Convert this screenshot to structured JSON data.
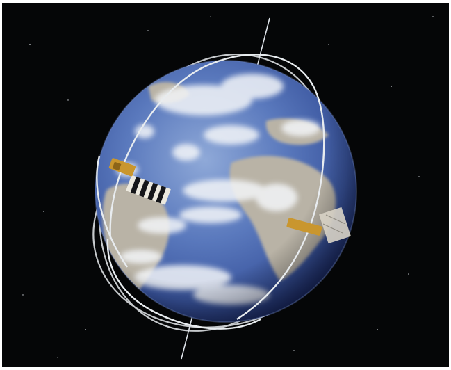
{
  "scene": {
    "subject": "earth-with-orbiting-satellites",
    "background_color": "#050607",
    "frame_color": "#ffffff",
    "colors": {
      "ocean_light": "#8fa9d8",
      "ocean_mid": "#4c6bb2",
      "ocean_deep": "#1b2c66",
      "land": "#b9b3a6",
      "cloud": "#f3f5f8",
      "orbit": "#e8ecef",
      "satellite_body": "#c9962e",
      "solar_panel_light": "#ece9df",
      "solar_panel_dark": "#15161a"
    }
  }
}
